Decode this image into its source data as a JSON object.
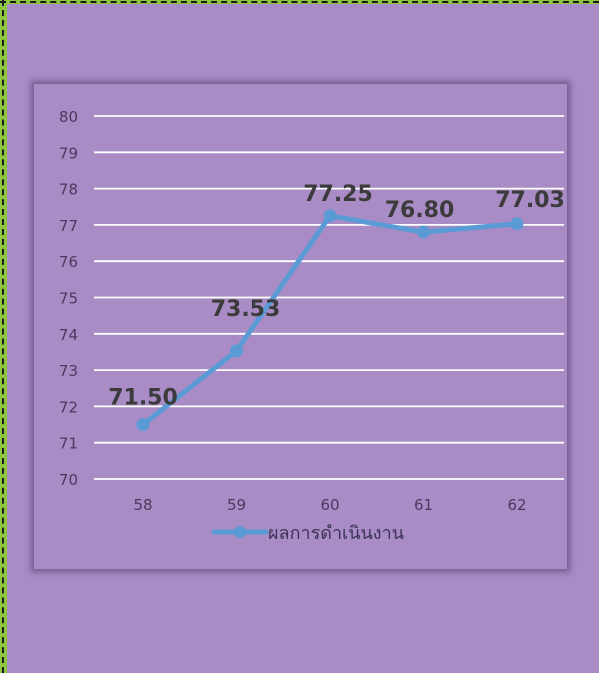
{
  "colors": {
    "background": "#a98bc6",
    "frame": "#8dc63f",
    "line": "#5b9bd5",
    "grid": "#ffffff",
    "tick_text": "#4a3a5c",
    "data_label": "#3b3b3b"
  },
  "chart_data": {
    "type": "line",
    "title": "",
    "xlabel": "",
    "ylabel": "",
    "categories": [
      "58",
      "59",
      "60",
      "61",
      "62"
    ],
    "series": [
      {
        "name": "ผลการดำเนินงาน",
        "values": [
          71.5,
          73.53,
          77.25,
          76.8,
          77.03
        ],
        "labels": [
          "71.50",
          "73.53",
          "77.25",
          "76.80",
          "77.03"
        ]
      }
    ],
    "ylim": [
      70,
      80
    ],
    "yticks": [
      "70",
      "71",
      "72",
      "73",
      "74",
      "75",
      "76",
      "77",
      "78",
      "79",
      "80"
    ],
    "grid": true,
    "legend_position": "bottom"
  }
}
